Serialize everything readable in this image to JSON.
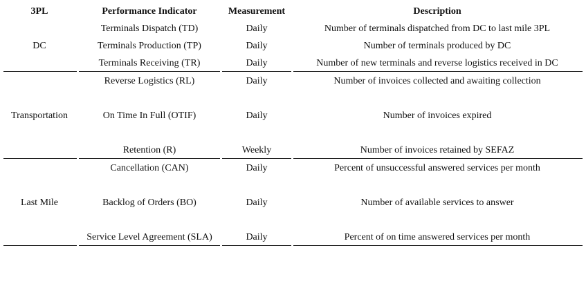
{
  "table": {
    "header": [
      "3PL",
      "Performance Indicator",
      "Measurement",
      "Description"
    ],
    "groups": [
      {
        "label": "DC",
        "rows": [
          [
            "Terminals Dispatch (TD)",
            "Daily",
            "Number of terminals dispatched from DC to last mile 3PL"
          ],
          [
            "Terminals Production (TP)",
            "Daily",
            "Number of terminals produced by DC"
          ],
          [
            "Terminals Receiving (TR)",
            "Daily",
            "Number of new terminals and reverse logistics received in DC"
          ]
        ]
      },
      {
        "label": "Transportation",
        "rows": [
          [
            "Reverse Logistics (RL)",
            "Daily",
            "Number of invoices collected and awaiting collection"
          ],
          [
            "On Time In Full (OTIF)",
            "Daily",
            "Number of invoices expired"
          ],
          [
            "Retention (R)",
            "Weekly",
            "Number of invoices retained by SEFAZ"
          ]
        ]
      },
      {
        "label": "Last Mile",
        "rows": [
          [
            "Cancellation (CAN)",
            "Daily",
            "Percent of unsuccessful answered services per month"
          ],
          [
            "Backlog of Orders (BO)",
            "Daily",
            "Number of available services to answer"
          ],
          [
            "Service Level Agreement (SLA)",
            "Daily",
            "Percent of on time answered services per month"
          ]
        ]
      }
    ]
  }
}
